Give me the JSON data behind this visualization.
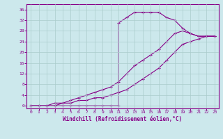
{
  "xlabel": "Windchill (Refroidissement éolien,°C)",
  "background_color": "#cce8ec",
  "grid_color": "#aacccc",
  "line_color": "#880088",
  "xlim": [
    -0.5,
    23.5
  ],
  "ylim": [
    -1,
    38
  ],
  "xticks": [
    0,
    1,
    2,
    3,
    4,
    5,
    6,
    7,
    8,
    9,
    10,
    11,
    12,
    13,
    14,
    15,
    16,
    17,
    18,
    19,
    20,
    21,
    22,
    23
  ],
  "yticks": [
    0,
    4,
    8,
    12,
    16,
    20,
    24,
    28,
    32,
    36
  ],
  "curve1_x": [
    0,
    1,
    2,
    3,
    4,
    5,
    6,
    7,
    8,
    9,
    10,
    11,
    11,
    12,
    13,
    14,
    15,
    16,
    17,
    18,
    19,
    20,
    21,
    22,
    23
  ],
  "curve1_y": [
    0,
    0,
    0,
    0,
    0,
    0,
    0,
    0,
    0,
    0,
    0,
    0,
    31,
    33,
    35,
    35,
    35,
    35,
    33,
    32,
    29,
    27,
    26,
    26,
    26
  ],
  "curve2_x": [
    0,
    1,
    2,
    3,
    4,
    5,
    6,
    7,
    8,
    9,
    10,
    11,
    12,
    13,
    14,
    15,
    16,
    17,
    18,
    19,
    20,
    21,
    22,
    23
  ],
  "curve2_y": [
    0,
    0,
    0,
    1,
    1,
    2,
    3,
    4,
    5,
    6,
    7,
    9,
    12,
    15,
    17,
    19,
    21,
    24,
    27,
    28,
    27,
    26,
    26,
    26
  ],
  "curve3_x": [
    0,
    1,
    2,
    3,
    4,
    5,
    6,
    7,
    8,
    9,
    10,
    11,
    12,
    13,
    14,
    15,
    16,
    17,
    18,
    19,
    20,
    21,
    22,
    23
  ],
  "curve3_y": [
    0,
    0,
    0,
    0,
    1,
    1,
    2,
    2,
    3,
    3,
    4,
    5,
    6,
    8,
    10,
    12,
    14,
    17,
    20,
    23,
    24,
    25,
    26,
    26
  ]
}
